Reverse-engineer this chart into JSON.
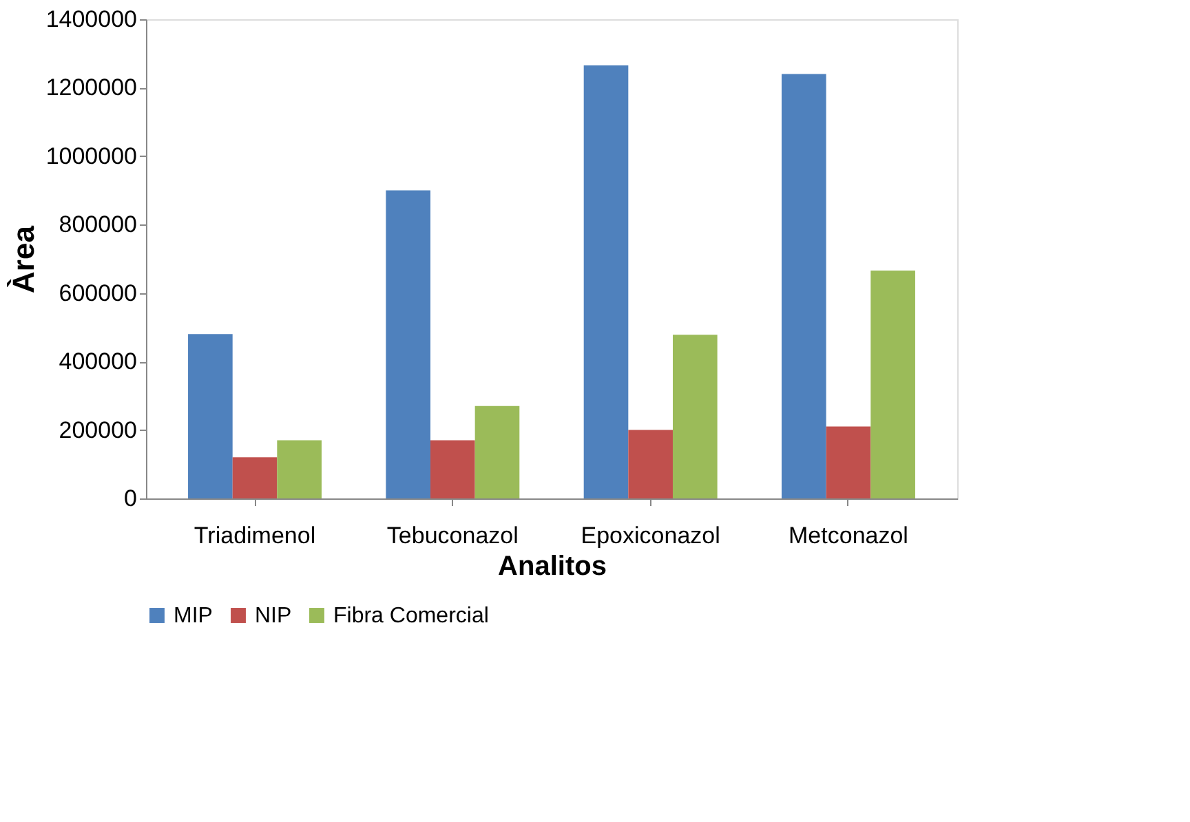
{
  "chart_data": {
    "type": "bar",
    "xlabel": "Analitos",
    "ylabel": "Àrea",
    "categories": [
      "Triadimenol",
      "Tebuconazol",
      "Epoxiconazol",
      "Metconazol"
    ],
    "series": [
      {
        "name": "MIP",
        "color": "#4f81bd",
        "values": [
          480000,
          900000,
          1265000,
          1240000
        ]
      },
      {
        "name": "NIP",
        "color": "#c0504d",
        "values": [
          120000,
          170000,
          200000,
          210000
        ]
      },
      {
        "name": "Fibra Comercial",
        "color": "#9bbb59",
        "values": [
          170000,
          270000,
          478000,
          666000
        ]
      }
    ],
    "ylim": [
      0,
      1400000
    ],
    "yticks": [
      0,
      200000,
      400000,
      600000,
      800000,
      1000000,
      1200000,
      1400000
    ],
    "grid": false,
    "legend": "bottom"
  }
}
